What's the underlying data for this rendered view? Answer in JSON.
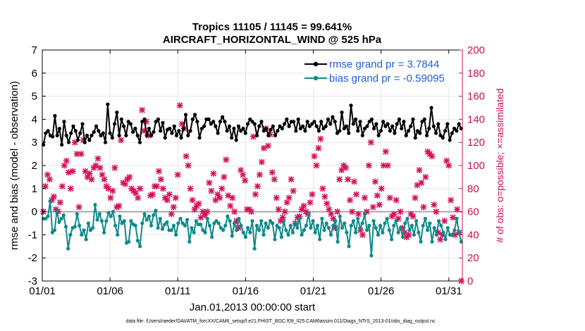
{
  "chart_data": {
    "type": "line",
    "title": "Tropics 11105 / 11145 = 99.641%",
    "subtitle": "AIRCRAFT_HORIZONTAL_WIND @ 525 hPa",
    "xlabel": "Jan.01,2013 00:00:00 start",
    "ylabel": "rmse and bias (model - observation)",
    "ylabel_right": "# of obs: o=possible; ×=assimilated",
    "footnote": "data file: /Users/raeder/DAI/ATM_forcXX/CAM6_setup/f.e21.FHIST_BGC.f09_025.CAM6assim.011/Diags_NTrS_2013-01/obs_diag_output.nc",
    "xlim": [
      1,
      32
    ],
    "ylim": [
      -3,
      7
    ],
    "ylim_right": [
      0,
      200
    ],
    "xticks": [
      1,
      6,
      11,
      16,
      21,
      26,
      31
    ],
    "xtick_labels": [
      "01/01",
      "01/06",
      "01/11",
      "01/16",
      "01/21",
      "01/26",
      "01/31"
    ],
    "yticks": [
      -3,
      -2,
      -1,
      0,
      1,
      2,
      3,
      4,
      5,
      6,
      7
    ],
    "ytick_labels": [
      "-3",
      "-2",
      "-1",
      "0",
      "1",
      "2",
      "3",
      "4",
      "5",
      "6",
      "7"
    ],
    "yticks_right": [
      0,
      20,
      40,
      60,
      80,
      100,
      120,
      140,
      160,
      180,
      200
    ],
    "ytick_right_labels": [
      "0",
      "20",
      "40",
      "60",
      "80",
      "100",
      "120",
      "140",
      "160",
      "180",
      "200"
    ],
    "legend_position": "top-right",
    "colors": {
      "rmse": "#000000",
      "bias": "#0e8a8a",
      "obs": "#d4145a",
      "zero_line": "#a8a8a8"
    },
    "series": [
      {
        "name": "rmse grand pr = 3.7844",
        "values": [
          2.9,
          3.4,
          3.5,
          3.3,
          3.25,
          4.15,
          3.3,
          3.6,
          2.9,
          3.9,
          3.3,
          3.0,
          3.4,
          3.7,
          3.5,
          3.1,
          3.4,
          3.8,
          3.0,
          3.3,
          3.1,
          3.3,
          3.45,
          3.7,
          3.5,
          3.3,
          3.4,
          3.0,
          4.65,
          3.4,
          3.2,
          3.8,
          4.3,
          3.3,
          4.0,
          3.7,
          3.3,
          3.9,
          3.8,
          3.45,
          3.6,
          3.3,
          3.0,
          3.9,
          4.0,
          3.3,
          3.6,
          3.3,
          3.45,
          3.9,
          4.0,
          3.5,
          3.85,
          3.2,
          3.55,
          3.6,
          3.4,
          3.7,
          3.3,
          3.5,
          3.2,
          3.6,
          4.2,
          3.3,
          3.5,
          4.0,
          4.2,
          3.9,
          3.2,
          3.6,
          3.7,
          4.0,
          4.0,
          3.8,
          3.9,
          3.7,
          3.4,
          3.9,
          4.1,
          3.9,
          3.5,
          3.7,
          3.2,
          3.6,
          3.1,
          3.7,
          3.5,
          3.6,
          3.4,
          3.8,
          4.0,
          3.9,
          3.8,
          3.3,
          3.7,
          3.9,
          3.5,
          3.6,
          3.3,
          3.55,
          3.7,
          3.3,
          3.5,
          3.7,
          3.6,
          3.8,
          4.0,
          3.7,
          3.9,
          3.9,
          3.5,
          4.0,
          3.6,
          3.7,
          3.5,
          3.9,
          3.7,
          3.8,
          3.9,
          3.7,
          3.5,
          3.9,
          3.6,
          3.7,
          4.0,
          3.8,
          4.1,
          3.9,
          3.4,
          3.5,
          4.3,
          3.6,
          3.7,
          3.4,
          4.6,
          3.8,
          4.0,
          3.5,
          3.9,
          3.3,
          3.6,
          3.7,
          3.9,
          4.0,
          3.6,
          3.8,
          3.3,
          3.5,
          3.9,
          3.7,
          3.8,
          3.5,
          3.7,
          3.4,
          3.8,
          4.0,
          3.6,
          3.9,
          3.3,
          3.5,
          3.7,
          4.0,
          3.2,
          3.5,
          3.4,
          3.9,
          4.0,
          3.3,
          3.6,
          4.5,
          3.7,
          3.4,
          3.8,
          3.3,
          3.2,
          3.5,
          3.8,
          3.1,
          3.4,
          3.6,
          3.5,
          3.8,
          3.6
        ]
      },
      {
        "name": "bias grand pr = -0.59095",
        "values": [
          -0.3,
          -0.3,
          -0.2,
          0.45,
          -0.9,
          -0.8,
          0.05,
          -0.45,
          -0.3,
          -0.15,
          -0.65,
          -1.6,
          -1.0,
          -0.7,
          -0.65,
          -0.1,
          -0.6,
          -1.0,
          -0.8,
          -1.2,
          -0.5,
          -0.8,
          -0.7,
          0.3,
          -0.35,
          -0.1,
          -0.4,
          -0.9,
          -0.4,
          -0.05,
          -0.2,
          0.0,
          -0.6,
          -1.0,
          -0.2,
          -0.5,
          -0.4,
          -1.35,
          -1.3,
          -0.4,
          -0.55,
          -0.6,
          -1.25,
          -1.5,
          -0.5,
          -0.1,
          -0.35,
          -0.2,
          -0.6,
          -0.15,
          0.05,
          -0.7,
          -0.3,
          -0.75,
          -0.55,
          -0.45,
          -0.8,
          -0.8,
          -0.6,
          -1.0,
          -0.5,
          -0.3,
          -0.5,
          -0.6,
          -0.35,
          -1.3,
          -0.7,
          -0.9,
          -0.4,
          -0.55,
          -0.55,
          -0.8,
          -0.9,
          -0.3,
          -0.6,
          -1.1,
          -0.5,
          -0.4,
          -0.5,
          -0.7,
          -0.8,
          -0.6,
          -0.2,
          -0.4,
          -1.05,
          -0.5,
          -0.8,
          -0.3,
          -0.6,
          -0.9,
          -1.1,
          -0.7,
          -0.9,
          -0.4,
          -1.6,
          -0.6,
          -0.8,
          -0.4,
          -1.0,
          -0.5,
          -0.7,
          -0.4,
          -0.5,
          -1.2,
          -0.6,
          -0.7,
          -1.1,
          -0.4,
          -0.8,
          -1.0,
          -0.6,
          -0.9,
          -0.5,
          -0.7,
          -0.3,
          -1.0,
          -0.8,
          -0.6,
          -0.1,
          -0.7,
          -0.4,
          -0.9,
          -0.6,
          -1.2,
          -0.3,
          -0.8,
          -0.5,
          -0.7,
          -1.0,
          -0.6,
          -0.4,
          -1.3,
          -0.2,
          -0.7,
          -0.5,
          -0.9,
          -1.5,
          -0.6,
          -0.4,
          -0.9,
          -0.3,
          -0.7,
          -0.5,
          -0.1,
          -0.8,
          -0.6,
          -1.9,
          -0.4,
          -0.7,
          -1.0,
          -0.6,
          -0.9,
          -0.5,
          -0.3,
          -0.8,
          -1.2,
          -0.6,
          -0.4,
          -0.9,
          -0.7,
          -1.1,
          -0.5,
          -0.3,
          -0.8,
          -0.6,
          -1.0,
          -0.4,
          -0.9,
          -1.3,
          -0.6,
          -0.3,
          -0.8,
          -0.5,
          -1.3,
          -0.7,
          -1.0,
          -0.4,
          -0.6,
          -0.9,
          -1.2,
          -0.7,
          -1.0,
          -1.0,
          -0.8,
          -0.3,
          -0.9,
          -1.3
        ]
      }
    ],
    "obs_counts": [
      60,
      82,
      92,
      88,
      70,
      73,
      62,
      60,
      68,
      82,
      100,
      104,
      94,
      80,
      95,
      120,
      110,
      64,
      110,
      122,
      95,
      90,
      93,
      88,
      98,
      100,
      106,
      98,
      92,
      88,
      82,
      80,
      72,
      78,
      98,
      64,
      65,
      122,
      85,
      84,
      88,
      90,
      80,
      78,
      76,
      72,
      80,
      148,
      130,
      138,
      126,
      74,
      75,
      82,
      82,
      95,
      88,
      80,
      72,
      70,
      75,
      58,
      64,
      72,
      92,
      152,
      136,
      132,
      108,
      100,
      80,
      70,
      62,
      65,
      67,
      55,
      60,
      57,
      60,
      85,
      78,
      93,
      70,
      75,
      72,
      80,
      90,
      105,
      74,
      65,
      72,
      60,
      52,
      46,
      96,
      92,
      87,
      62,
      62,
      60,
      125,
      75,
      82,
      92,
      103,
      115,
      132,
      117,
      127,
      94,
      88,
      72,
      62,
      52,
      55,
      60,
      68,
      72,
      88,
      78,
      50,
      55,
      56,
      62,
      65,
      60,
      58,
      68,
      75,
      108,
      100,
      115,
      123,
      80,
      73,
      67,
      62,
      58,
      54,
      46,
      60,
      88,
      96,
      100,
      98,
      88,
      70,
      60,
      86,
      75,
      58,
      44,
      40,
      72,
      60,
      100,
      120,
      64,
      86,
      74,
      66,
      80,
      100,
      112,
      100,
      72,
      56,
      58,
      70,
      54,
      60,
      46,
      42,
      38,
      40,
      58,
      56,
      72,
      83,
      96,
      85,
      64,
      90,
      112,
      110,
      108,
      66,
      60,
      42,
      36,
      40,
      52,
      104,
      100,
      70,
      55,
      40,
      62,
      42,
      0
    ]
  }
}
